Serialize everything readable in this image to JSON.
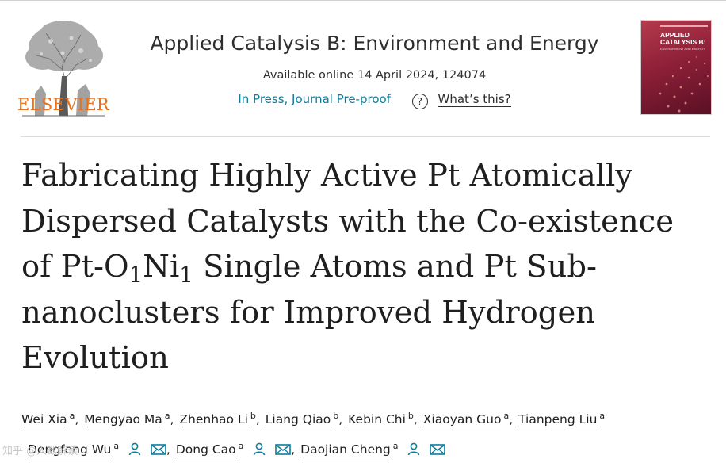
{
  "publisher": {
    "name": "ELSEVIER"
  },
  "journal": {
    "name": "Applied Catalysis B: Environment and Energy",
    "availability": "Available online 14 April 2024, 124074",
    "status": "In Press, Journal Pre-proof",
    "help_label": "What’s this?",
    "help_icon": "?",
    "cover_title": "APPLIED\nCATALYSIS B:",
    "cover_subtitle": "ENVIRONMENT\nAND ENERGY"
  },
  "article": {
    "title_line1": "Fabricating Highly Active Pt Atomically",
    "title_line2": "Dispersed Catalysts with the Co-existence",
    "title_line3_a": "of Pt-O",
    "title_line3_sub1": "1",
    "title_line3_b": "Ni",
    "title_line3_sub2": "1",
    "title_line3_c": " Single Atoms and Pt Sub-",
    "title_line4": "nanoclusters for Improved Hydrogen",
    "title_line5": "Evolution"
  },
  "authors": [
    {
      "name": "Wei Xia",
      "aff": "a"
    },
    {
      "name": "Mengyao Ma",
      "aff": "a"
    },
    {
      "name": "Zhenhao Li",
      "aff": "b"
    },
    {
      "name": "Liang Qiao",
      "aff": "b"
    },
    {
      "name": "Kebin Chi",
      "aff": "b"
    },
    {
      "name": "Xiaoyan Guo",
      "aff": "a"
    },
    {
      "name": "Tianpeng Liu",
      "aff": "a"
    },
    {
      "name": "Dengfeng Wu",
      "aff": "a"
    },
    {
      "name": "Dong Cao",
      "aff": "a"
    },
    {
      "name": "Daojian Cheng",
      "aff": "a"
    }
  ],
  "separator": ",",
  "watermark": "知乎 @人数解读",
  "colors": {
    "link": "#0c7d9d",
    "logo": "#e9711c",
    "icon": "#0c7d9d",
    "cover": "#8e2038"
  },
  "icons": {
    "author_profile": "person-icon",
    "email": "envelope-icon",
    "help": "question-circle-icon"
  }
}
